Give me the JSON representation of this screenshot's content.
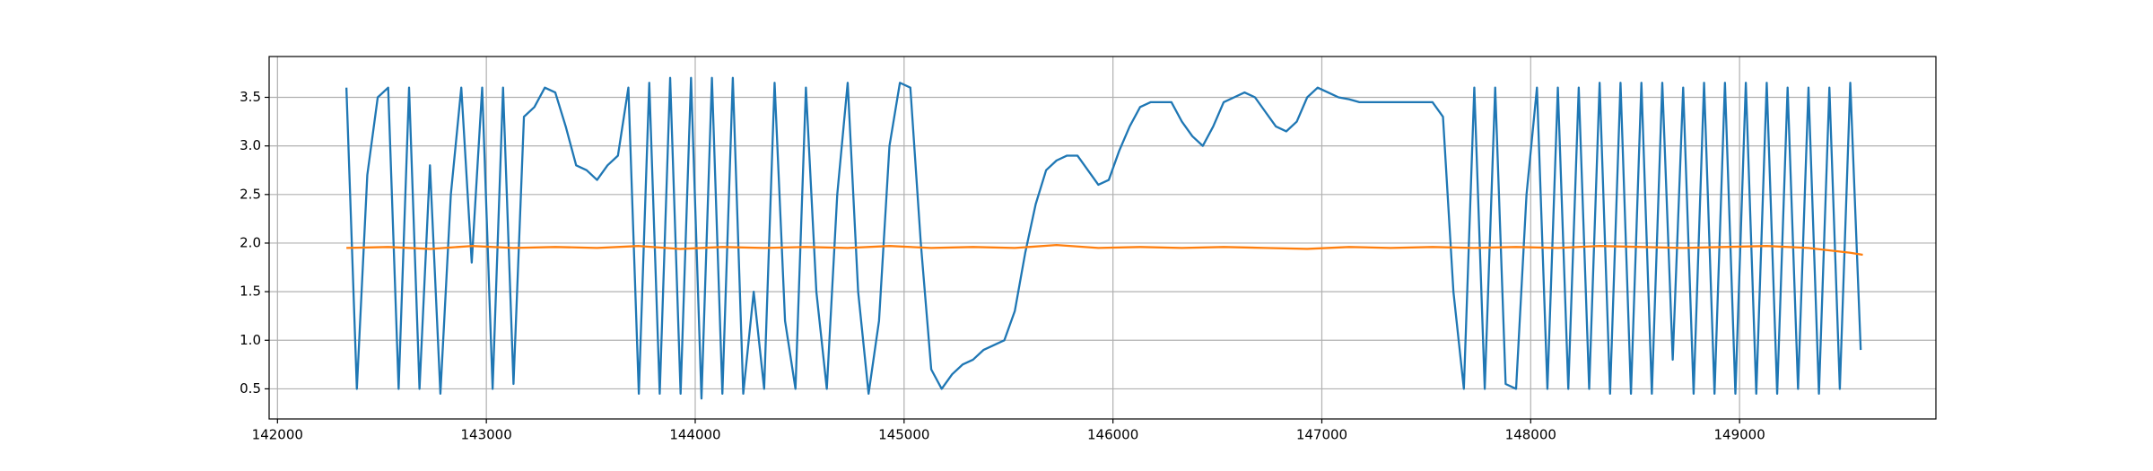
{
  "chart_data": {
    "type": "line",
    "xlim": [
      141960,
      149940
    ],
    "ylim": [
      0.19,
      3.92
    ],
    "xticks": [
      142000,
      143000,
      144000,
      145000,
      146000,
      147000,
      148000,
      149000
    ],
    "yticks": [
      {
        "value": 0.5,
        "label": "0.5"
      },
      {
        "value": 1,
        "label": "1.0"
      },
      {
        "value": 1.5,
        "label": "1.5"
      },
      {
        "value": 2,
        "label": "2.0"
      },
      {
        "value": 2.5,
        "label": "2.5"
      },
      {
        "value": 3,
        "label": "3.0"
      },
      {
        "value": 3.5,
        "label": "3.5"
      }
    ],
    "grid": true,
    "series": [
      {
        "color": "#1f77b4",
        "x": [
          142330,
          142380,
          142430,
          142480,
          142530,
          142580,
          142630,
          142680,
          142730,
          142780,
          142830,
          142880,
          142930,
          142980,
          143030,
          143080,
          143130,
          143180,
          143230,
          143280,
          143330,
          143380,
          143430,
          143480,
          143530,
          143580,
          143630,
          143680,
          143730,
          143780,
          143830,
          143880,
          143930,
          143980,
          144030,
          144080,
          144130,
          144180,
          144230,
          144280,
          144330,
          144380,
          144430,
          144480,
          144530,
          144580,
          144630,
          144680,
          144730,
          144780,
          144830,
          144880,
          144930,
          144980,
          145030,
          145080,
          145130,
          145180,
          145230,
          145280,
          145330,
          145380,
          145430,
          145480,
          145530,
          145580,
          145630,
          145680,
          145730,
          145780,
          145830,
          145880,
          145930,
          145980,
          146030,
          146080,
          146130,
          146180,
          146230,
          146280,
          146330,
          146380,
          146430,
          146480,
          146530,
          146580,
          146630,
          146680,
          146730,
          146780,
          146830,
          146880,
          146930,
          146980,
          147030,
          147080,
          147130,
          147180,
          147230,
          147280,
          147330,
          147380,
          147430,
          147480,
          147530,
          147580,
          147630,
          147680,
          147730,
          147780,
          147830,
          147880,
          147930,
          147980,
          148030,
          148080,
          148130,
          148180,
          148230,
          148280,
          148330,
          148380,
          148430,
          148480,
          148530,
          148580,
          148630,
          148680,
          148730,
          148780,
          148830,
          148880,
          148930,
          148980,
          149030,
          149080,
          149130,
          149180,
          149230,
          149280,
          149330,
          149380,
          149430,
          149480,
          149530,
          149580
        ],
        "values": [
          3.6,
          0.5,
          2.7,
          3.5,
          3.6,
          0.5,
          3.6,
          0.5,
          2.8,
          0.45,
          2.5,
          3.6,
          1.8,
          3.6,
          0.5,
          3.6,
          0.55,
          3.3,
          3.4,
          3.6,
          3.55,
          3.2,
          2.8,
          2.75,
          2.65,
          2.8,
          2.9,
          3.6,
          0.45,
          3.65,
          0.45,
          3.7,
          0.45,
          3.7,
          0.4,
          3.7,
          0.45,
          3.7,
          0.45,
          1.5,
          0.5,
          3.65,
          1.2,
          0.5,
          3.6,
          1.5,
          0.5,
          2.5,
          3.65,
          1.5,
          0.45,
          1.2,
          3.0,
          3.65,
          3.6,
          2.0,
          0.7,
          0.5,
          0.65,
          0.75,
          0.8,
          0.9,
          0.95,
          1.0,
          1.3,
          1.9,
          2.4,
          2.75,
          2.85,
          2.9,
          2.9,
          2.75,
          2.6,
          2.65,
          2.95,
          3.2,
          3.4,
          3.45,
          3.45,
          3.45,
          3.25,
          3.1,
          3.0,
          3.2,
          3.45,
          3.5,
          3.55,
          3.5,
          3.35,
          3.2,
          3.15,
          3.25,
          3.5,
          3.6,
          3.55,
          3.5,
          3.48,
          3.45,
          3.45,
          3.45,
          3.45,
          3.45,
          3.45,
          3.45,
          3.45,
          3.3,
          1.5,
          0.5,
          3.6,
          0.5,
          3.6,
          0.55,
          0.5,
          2.5,
          3.6,
          0.5,
          3.6,
          0.5,
          3.6,
          0.5,
          3.65,
          0.45,
          3.65,
          0.45,
          3.65,
          0.45,
          3.65,
          0.8,
          3.6,
          0.45,
          3.65,
          0.45,
          3.65,
          0.45,
          3.65,
          0.45,
          3.65,
          0.45,
          3.6,
          0.5,
          3.6,
          0.45,
          3.6,
          0.5,
          3.65,
          0.9
        ]
      },
      {
        "color": "#ff7f0e",
        "x": [
          142330,
          142530,
          142730,
          142930,
          143130,
          143330,
          143530,
          143730,
          143930,
          144130,
          144330,
          144530,
          144730,
          144930,
          145130,
          145330,
          145530,
          145730,
          145930,
          146130,
          146330,
          146530,
          146730,
          146930,
          147130,
          147330,
          147530,
          147730,
          147930,
          148130,
          148330,
          148530,
          148730,
          148930,
          149130,
          149330,
          149530,
          149590
        ],
        "values": [
          1.95,
          1.96,
          1.94,
          1.97,
          1.95,
          1.96,
          1.95,
          1.97,
          1.94,
          1.96,
          1.95,
          1.96,
          1.95,
          1.97,
          1.95,
          1.96,
          1.95,
          1.98,
          1.95,
          1.96,
          1.95,
          1.96,
          1.95,
          1.94,
          1.96,
          1.95,
          1.96,
          1.95,
          1.96,
          1.95,
          1.97,
          1.96,
          1.95,
          1.96,
          1.97,
          1.95,
          1.9,
          1.88
        ]
      }
    ]
  }
}
